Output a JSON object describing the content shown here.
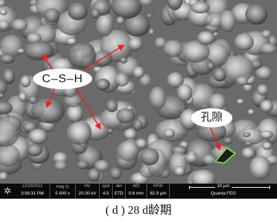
{
  "labels": {
    "phase": "C–S–H",
    "pore": "孔隙"
  },
  "info_bar": {
    "date": "12/29/2021",
    "time": "3:08:31 PM",
    "mag_header": "mag ⊡",
    "mag_value": "5 000 x",
    "hv_header": "HV",
    "hv_value": "20.00 kV",
    "spot_header": "spot",
    "spot_value": "4.5",
    "det_header": "det",
    "det_value": "ETD",
    "wd_header": "WD",
    "wd_value": "9.6 mm",
    "hfw_header": "HFW",
    "hfw_value": "82.9 µm",
    "scale_value": "20 µm",
    "instrument": "Quanta FEG"
  },
  "caption": "( d ) 28 d龄期",
  "colors": {
    "arrow": "#e8231f",
    "pore_outline": "#7cd83a",
    "bar_background": "#0a0a0a"
  }
}
